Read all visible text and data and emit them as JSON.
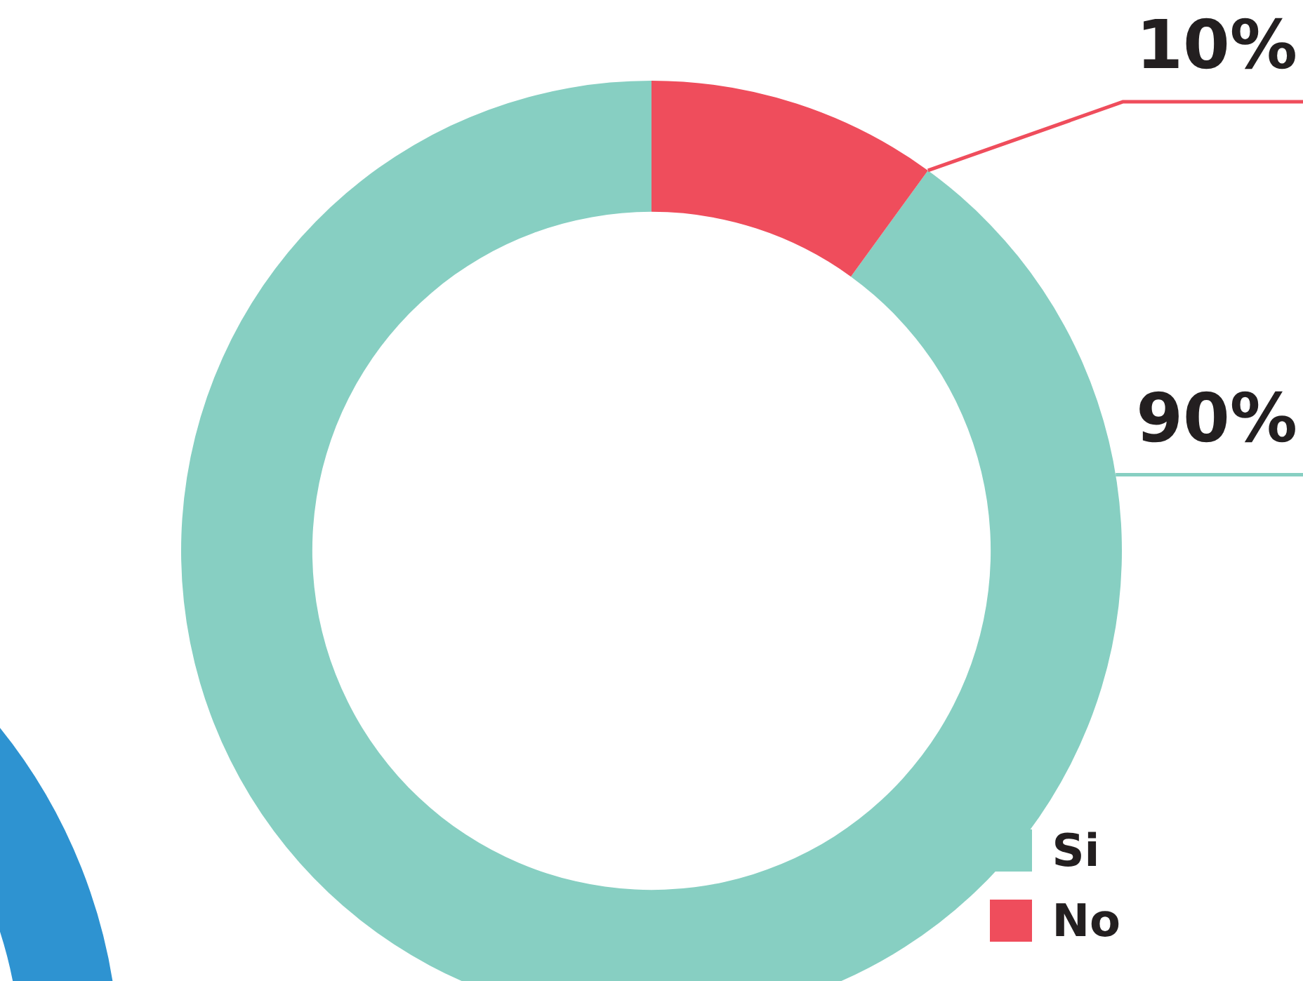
{
  "chart_data": {
    "type": "donut",
    "categories": [
      "Si",
      "No"
    ],
    "values": [
      90,
      10
    ],
    "colors": [
      "#87cfc2",
      "#ef4d5c"
    ],
    "value_labels": [
      "90%",
      "10%"
    ],
    "legend": "bottom right"
  }
}
